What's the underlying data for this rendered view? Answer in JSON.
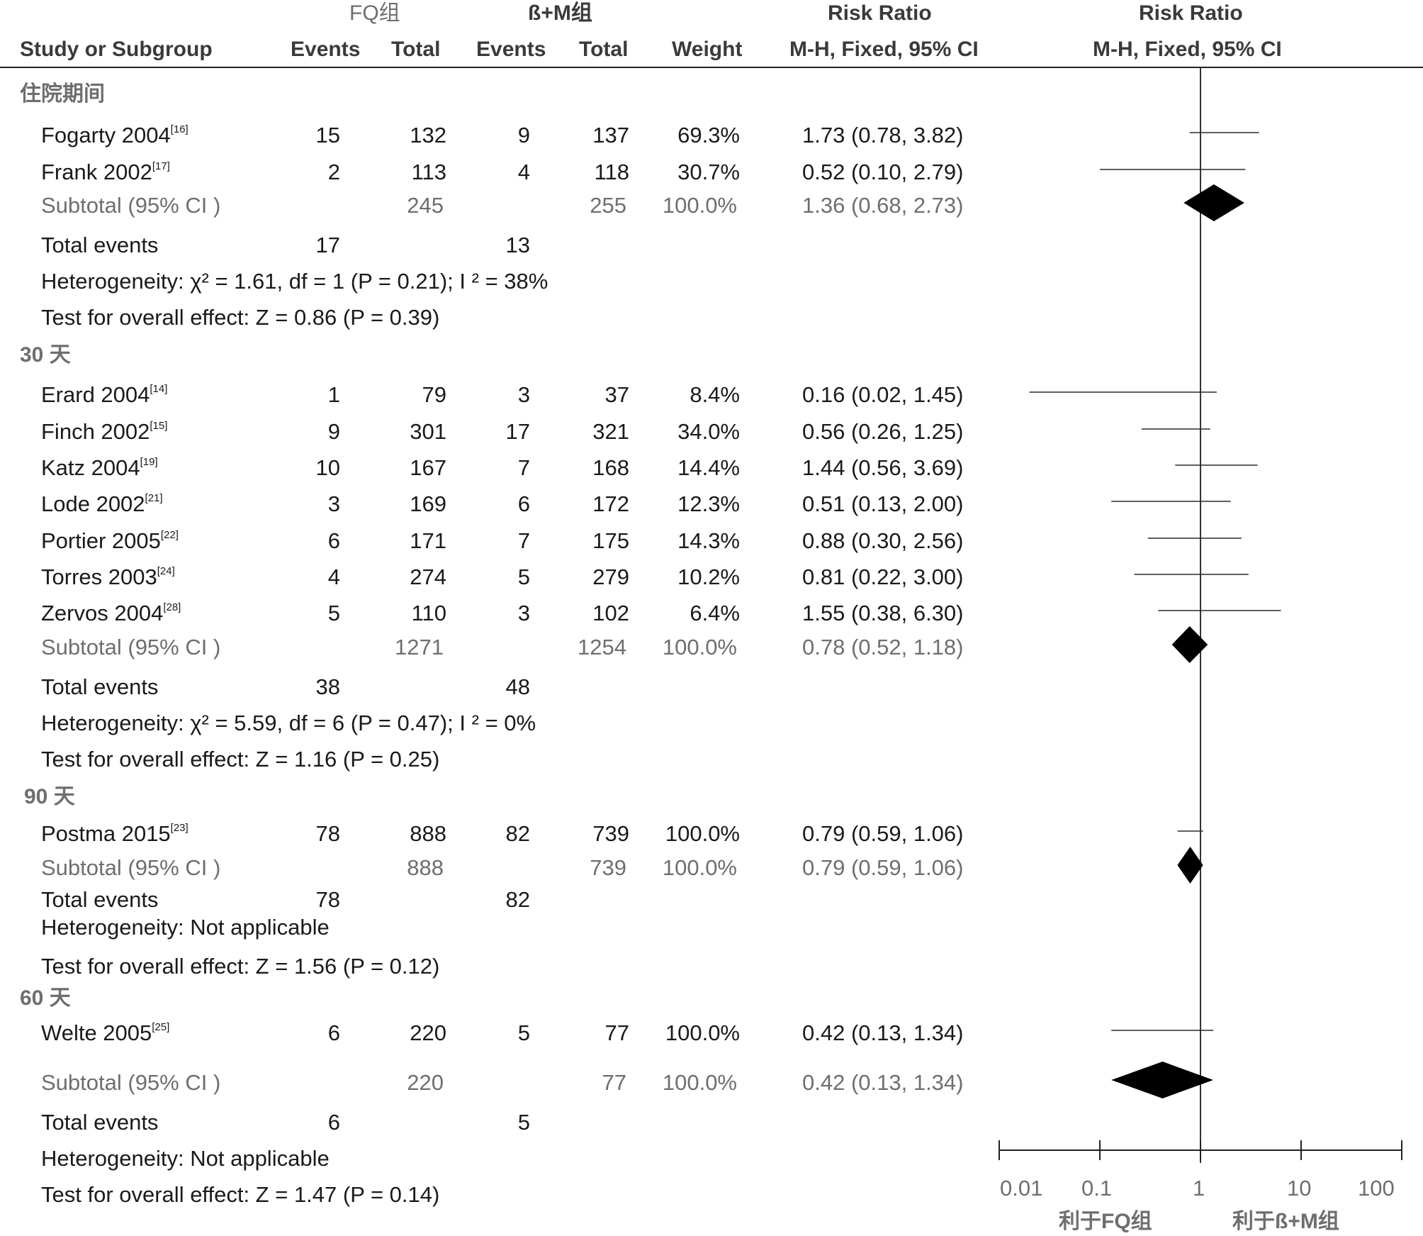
{
  "header": {
    "group1": "FQ组",
    "group2": "ß+M组",
    "rr_title1": "Risk Ratio",
    "rr_title2": "Risk Ratio",
    "study": "Study or Subgroup",
    "events1": "Events",
    "total1": "Total",
    "events2": "Events",
    "total2": "Total",
    "weight": "Weight",
    "method1": "M-H, Fixed, 95% CI",
    "method2": "M-H, Fixed, 95% CI"
  },
  "subgroups": [
    {
      "name": "住院期间",
      "studies": [
        {
          "study": "Fogarty 2004",
          "ref": "[16]",
          "e1": "15",
          "t1": "132",
          "e2": "9",
          "t2": "137",
          "weight": "69.3%",
          "ci": "1.73 (0.78, 3.82)",
          "rr": 1.73,
          "lo": 0.78,
          "hi": 3.82
        },
        {
          "study": "Frank 2002",
          "ref": "[17]",
          "e1": "2",
          "t1": "113",
          "e2": "4",
          "t2": "118",
          "weight": "30.7%",
          "ci": "0.52 (0.10, 2.79)",
          "rr": 0.52,
          "lo": 0.1,
          "hi": 2.79
        }
      ],
      "subtotal": {
        "label": "Subtotal (95% CI )",
        "t1": "245",
        "t2": "255",
        "weight": "100.0%",
        "ci": "1.36 (0.68, 2.73)",
        "rr": 1.36,
        "lo": 0.68,
        "hi": 2.73
      },
      "total_events": {
        "label": "Total events",
        "e1": "17",
        "e2": "13"
      },
      "heterogeneity": "Heterogeneity:  χ² = 1.61, df = 1 (P = 0.21); I ² = 38%",
      "overall": "Test for overall effect: Z = 0.86 (P = 0.39)"
    },
    {
      "name": "30 天",
      "studies": [
        {
          "study": "Erard 2004",
          "ref": "[14]",
          "e1": "1",
          "t1": "79",
          "e2": "3",
          "t2": "37",
          "weight": "8.4%",
          "ci": "0.16 (0.02, 1.45)",
          "rr": 0.16,
          "lo": 0.02,
          "hi": 1.45
        },
        {
          "study": "Finch 2002",
          "ref": "[15]",
          "e1": "9",
          "t1": "301",
          "e2": "17",
          "t2": "321",
          "weight": "34.0%",
          "ci": "0.56 (0.26, 1.25)",
          "rr": 0.56,
          "lo": 0.26,
          "hi": 1.25
        },
        {
          "study": "Katz 2004",
          "ref": "[19]",
          "e1": "10",
          "t1": "167",
          "e2": "7",
          "t2": "168",
          "weight": "14.4%",
          "ci": "1.44 (0.56, 3.69)",
          "rr": 1.44,
          "lo": 0.56,
          "hi": 3.69
        },
        {
          "study": "Lode 2002",
          "ref": "[21]",
          "e1": "3",
          "t1": "169",
          "e2": "6",
          "t2": "172",
          "weight": "12.3%",
          "ci": "0.51 (0.13, 2.00)",
          "rr": 0.51,
          "lo": 0.13,
          "hi": 2.0
        },
        {
          "study": "Portier 2005",
          "ref": "[22]",
          "e1": "6",
          "t1": "171",
          "e2": "7",
          "t2": "175",
          "weight": "14.3%",
          "ci": "0.88 (0.30, 2.56)",
          "rr": 0.88,
          "lo": 0.3,
          "hi": 2.56
        },
        {
          "study": "Torres 2003",
          "ref": "[24]",
          "e1": "4",
          "t1": "274",
          "e2": "5",
          "t2": "279",
          "weight": "10.2%",
          "ci": "0.81 (0.22, 3.00)",
          "rr": 0.81,
          "lo": 0.22,
          "hi": 3.0
        },
        {
          "study": "Zervos 2004",
          "ref": "[28]",
          "e1": "5",
          "t1": "110",
          "e2": "3",
          "t2": "102",
          "weight": "6.4%",
          "ci": "1.55 (0.38, 6.30)",
          "rr": 1.55,
          "lo": 0.38,
          "hi": 6.3
        }
      ],
      "subtotal": {
        "label": "Subtotal (95% CI )",
        "t1": "1271",
        "t2": "1254",
        "weight": "100.0%",
        "ci": "0.78 (0.52, 1.18)",
        "rr": 0.78,
        "lo": 0.52,
        "hi": 1.18
      },
      "total_events": {
        "label": "Total events",
        "e1": "38",
        "e2": "48"
      },
      "heterogeneity": "Heterogeneity:  χ² = 5.59, df = 6 (P = 0.47); I ² = 0%",
      "overall": "Test for overall effect: Z = 1.16 (P = 0.25)"
    },
    {
      "name": "90 天",
      "studies": [
        {
          "study": "Postma 2015",
          "ref": "[23]",
          "e1": "78",
          "t1": "888",
          "e2": "82",
          "t2": "739",
          "weight": "100.0%",
          "ci": "0.79 (0.59, 1.06)",
          "rr": 0.79,
          "lo": 0.59,
          "hi": 1.06
        }
      ],
      "subtotal": {
        "label": "Subtotal (95% CI )",
        "t1": "888",
        "t2": "739",
        "weight": "100.0%",
        "ci": "0.79 (0.59, 1.06)",
        "rr": 0.79,
        "lo": 0.59,
        "hi": 1.06
      },
      "total_events": {
        "label": "Total events",
        "e1": "78",
        "e2": "82"
      },
      "heterogeneity": "Heterogeneity: Not applicable",
      "overall": "Test for overall effect: Z = 1.56 (P = 0.12)"
    },
    {
      "name": "60 天",
      "studies": [
        {
          "study": "Welte 2005",
          "ref": "[25]",
          "e1": "6",
          "t1": "220",
          "e2": "5",
          "t2": "77",
          "weight": "100.0%",
          "ci": "0.42 (0.13, 1.34)",
          "rr": 0.42,
          "lo": 0.13,
          "hi": 1.34
        }
      ],
      "subtotal": {
        "label": "Subtotal (95% CI )",
        "t1": "220",
        "t2": "77",
        "weight": "100.0%",
        "ci": "0.42 (0.13, 1.34)",
        "rr": 0.42,
        "lo": 0.13,
        "hi": 1.34
      },
      "total_events": {
        "label": "Total events",
        "e1": "6",
        "e2": "5"
      },
      "heterogeneity": "Heterogeneity: Not applicable",
      "overall": "Test for overall effect: Z = 1.47 (P = 0.14)"
    }
  ],
  "axis": {
    "ticks": [
      "0.01",
      "0.1",
      "1",
      "10",
      "100"
    ],
    "favours_left": "利于FQ组",
    "favours_right": "利于ß+M组"
  },
  "chart_data": {
    "type": "forest",
    "scale": "log",
    "xlim": [
      0.01,
      100
    ],
    "reference_line": 1,
    "colors": {
      "study_box": "#1f1f8c",
      "diamond": "#000000"
    },
    "points": [
      {
        "label": "Fogarty 2004",
        "rr": 1.73,
        "lo": 0.78,
        "hi": 3.82,
        "weight": 69.3
      },
      {
        "label": "Frank 2002",
        "rr": 0.52,
        "lo": 0.1,
        "hi": 2.79,
        "weight": 30.7
      },
      {
        "label": "Subtotal 住院期间",
        "rr": 1.36,
        "lo": 0.68,
        "hi": 2.73
      },
      {
        "label": "Erard 2004",
        "rr": 0.16,
        "lo": 0.02,
        "hi": 1.45,
        "weight": 8.4
      },
      {
        "label": "Finch 2002",
        "rr": 0.56,
        "lo": 0.26,
        "hi": 1.25,
        "weight": 34.0
      },
      {
        "label": "Katz 2004",
        "rr": 1.44,
        "lo": 0.56,
        "hi": 3.69,
        "weight": 14.4
      },
      {
        "label": "Lode 2002",
        "rr": 0.51,
        "lo": 0.13,
        "hi": 2.0,
        "weight": 12.3
      },
      {
        "label": "Portier 2005",
        "rr": 0.88,
        "lo": 0.3,
        "hi": 2.56,
        "weight": 14.3
      },
      {
        "label": "Torres 2003",
        "rr": 0.81,
        "lo": 0.22,
        "hi": 3.0,
        "weight": 10.2
      },
      {
        "label": "Zervos 2004",
        "rr": 1.55,
        "lo": 0.38,
        "hi": 6.3,
        "weight": 6.4
      },
      {
        "label": "Subtotal 30 天",
        "rr": 0.78,
        "lo": 0.52,
        "hi": 1.18
      },
      {
        "label": "Postma 2015",
        "rr": 0.79,
        "lo": 0.59,
        "hi": 1.06,
        "weight": 100.0
      },
      {
        "label": "Subtotal 90 天",
        "rr": 0.79,
        "lo": 0.59,
        "hi": 1.06
      },
      {
        "label": "Welte 2005",
        "rr": 0.42,
        "lo": 0.13,
        "hi": 1.34,
        "weight": 100.0
      },
      {
        "label": "Subtotal 60 天",
        "rr": 0.42,
        "lo": 0.13,
        "hi": 1.34
      }
    ]
  }
}
